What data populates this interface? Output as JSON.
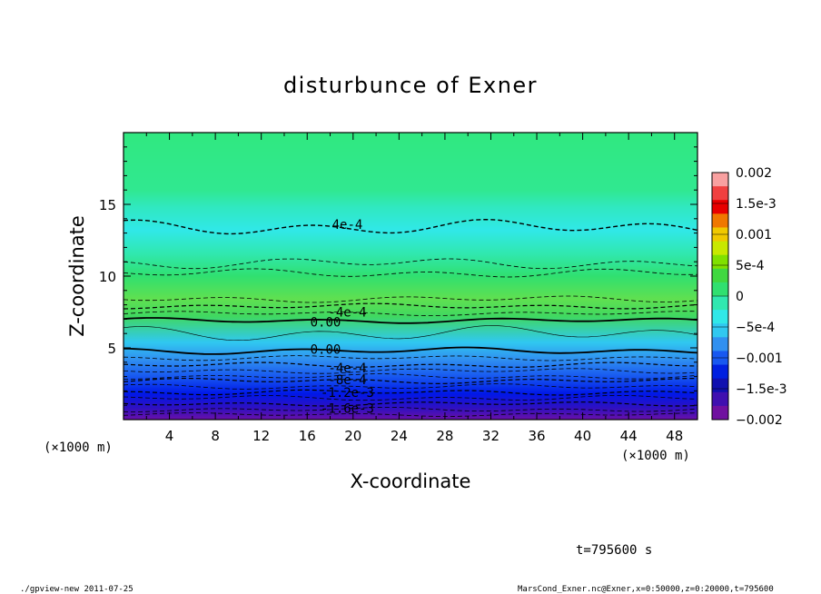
{
  "chart_data": {
    "type": "heatmap",
    "title": "disturbunce of Exner",
    "xlabel": "X-coordinate",
    "ylabel": "Z-coordinate",
    "x_unit_left": "(×1000 m)",
    "x_unit_right": "(×1000 m)",
    "xlim": [
      0,
      50
    ],
    "ylim": [
      0,
      20
    ],
    "x_ticks": [
      "4",
      "8",
      "12",
      "16",
      "20",
      "24",
      "28",
      "32",
      "36",
      "40",
      "44",
      "48"
    ],
    "x_tick_values": [
      4,
      8,
      12,
      16,
      20,
      24,
      28,
      32,
      36,
      40,
      44,
      48
    ],
    "y_ticks": [
      "5",
      "10",
      "15"
    ],
    "y_tick_values": [
      5,
      10,
      15
    ],
    "colorbar": {
      "labels": [
        "0.002",
        "1.5e-3",
        "0.001",
        "5e-4",
        "0",
        "−5e-4",
        "−0.001",
        "−1.5e-3",
        "−0.002"
      ],
      "range": [
        -0.002,
        0.002
      ],
      "colors": [
        "#f8a0a0",
        "#f04040",
        "#e80000",
        "#f07800",
        "#f0c800",
        "#c8e800",
        "#80e000",
        "#40d840",
        "#30e070",
        "#30e8b0",
        "#30e8e8",
        "#30c8f0",
        "#3090f0",
        "#1858f0",
        "#0020e0",
        "#1010b0",
        "#4010b0",
        "#7010a0"
      ]
    },
    "contour_labels": [
      {
        "text": "4e-4",
        "x": 19.5,
        "z": 13.6
      },
      {
        "text": "-4e-4",
        "x": 19.5,
        "z": 7.5
      },
      {
        "text": "0.00",
        "x": 17.6,
        "z": 6.8
      },
      {
        "text": "0.00",
        "x": 17.6,
        "z": 4.9
      },
      {
        "text": "-4e-4",
        "x": 19.5,
        "z": 3.6
      },
      {
        "text": "-8e-4",
        "x": 19.5,
        "z": 2.8
      },
      {
        "text": "-1.2e-3",
        "x": 19.5,
        "z": 1.9
      },
      {
        "text": "-1.6e-3",
        "x": 19.5,
        "z": 0.8
      }
    ],
    "time_label": "t=795600 s",
    "footer_left": "./gpview-new   2011-07-25",
    "footer_right": "MarsCond_Exner.nc@Exner,x=0:50000,z=0:20000,t=795600"
  }
}
